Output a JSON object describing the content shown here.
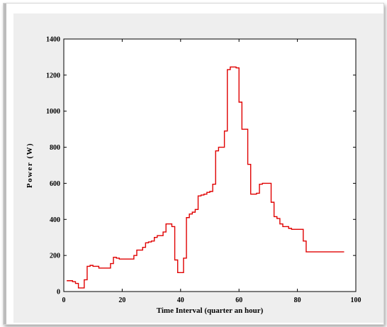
{
  "chart_data": {
    "type": "line",
    "title": "",
    "xlabel": "Time Interval (quarter an hour)",
    "ylabel": "Power (W)",
    "xlim": [
      0,
      100
    ],
    "ylim": [
      0,
      1400
    ],
    "xticks": [
      0,
      20,
      40,
      60,
      80,
      100
    ],
    "yticks": [
      0,
      200,
      400,
      600,
      800,
      1000,
      1200,
      1400
    ],
    "grid": false,
    "line_color": "#e00000",
    "step": true,
    "series": [
      {
        "x": [
          1,
          2,
          3,
          4,
          5,
          6,
          7,
          8,
          9,
          10,
          11,
          12,
          13,
          14,
          15,
          16,
          17,
          18,
          19,
          20,
          21,
          22,
          23,
          24,
          25,
          26,
          27,
          28,
          29,
          30,
          31,
          32,
          33,
          34,
          35,
          36,
          37,
          38,
          39,
          40,
          41,
          42,
          43,
          44,
          45,
          46,
          47,
          48,
          49,
          50,
          51,
          52,
          53,
          54,
          55,
          56,
          57,
          58,
          59,
          60,
          61,
          62,
          63,
          64,
          65,
          66,
          67,
          68,
          69,
          70,
          71,
          72,
          73,
          74,
          75,
          76,
          77,
          78,
          79,
          80,
          81,
          82,
          83,
          84,
          85,
          86,
          87,
          88,
          89,
          90,
          91,
          92,
          93,
          94,
          95,
          96
        ],
        "values": [
          60,
          60,
          55,
          45,
          20,
          20,
          65,
          140,
          145,
          140,
          140,
          130,
          130,
          130,
          130,
          155,
          190,
          185,
          180,
          180,
          180,
          180,
          180,
          200,
          230,
          230,
          245,
          270,
          275,
          280,
          300,
          310,
          310,
          330,
          375,
          375,
          360,
          175,
          105,
          105,
          185,
          410,
          430,
          440,
          455,
          530,
          535,
          540,
          550,
          555,
          595,
          780,
          800,
          800,
          890,
          1230,
          1245,
          1245,
          1240,
          1050,
          900,
          900,
          705,
          540,
          540,
          545,
          595,
          600,
          600,
          600,
          495,
          415,
          405,
          375,
          360,
          360,
          350,
          345,
          345,
          345,
          345,
          280,
          220,
          220,
          220,
          220,
          220,
          220,
          220,
          220,
          220,
          220,
          220,
          220,
          220,
          220
        ]
      }
    ]
  }
}
